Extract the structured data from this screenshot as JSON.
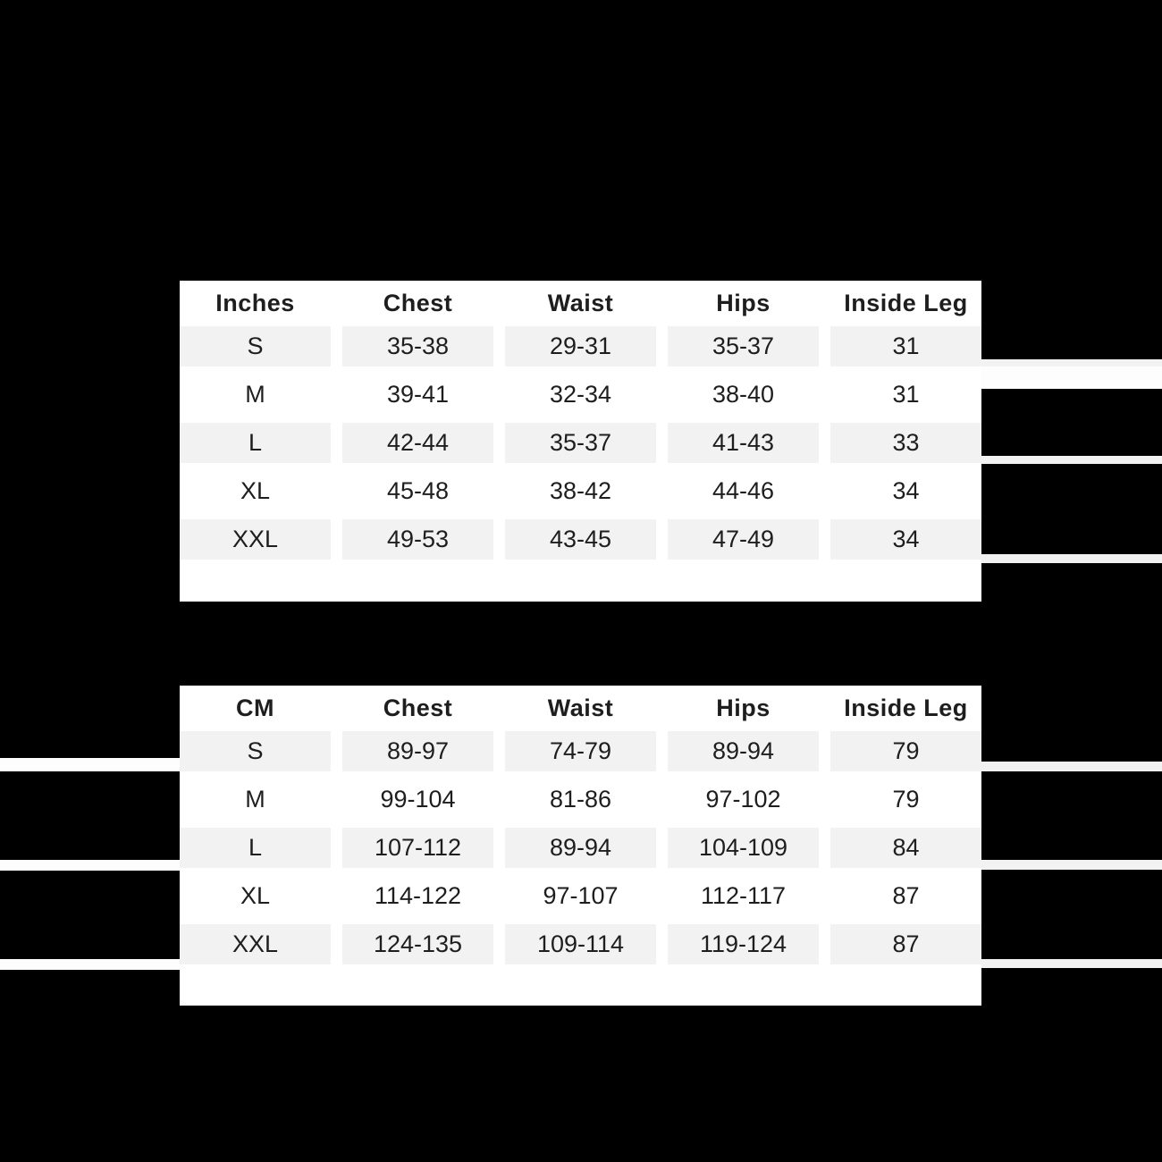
{
  "colors": {
    "background": "#000000",
    "card": "#ffffff",
    "row_stripe": "#f2f2f2",
    "text": "#1e1e1e",
    "edge_sliver_white": "#fdfdfd",
    "edge_sliver_gray": "#f2f2f2"
  },
  "chart_data": [
    {
      "type": "table",
      "title": "Size chart in inches",
      "unit_label": "Inches",
      "columns": [
        "Inches",
        "Chest",
        "Waist",
        "Hips",
        "Inside Leg"
      ],
      "rows": [
        [
          "S",
          "35-38",
          "29-31",
          "35-37",
          "31"
        ],
        [
          "M",
          "39-41",
          "32-34",
          "38-40",
          "31"
        ],
        [
          "L",
          "42-44",
          "35-37",
          "41-43",
          "33"
        ],
        [
          "XL",
          "45-48",
          "38-42",
          "44-46",
          "34"
        ],
        [
          "XXL",
          "49-53",
          "43-45",
          "47-49",
          "34"
        ]
      ],
      "layout_hints": {
        "striped_rows": [
          "S",
          "L",
          "XXL"
        ],
        "header_bold": true
      }
    },
    {
      "type": "table",
      "title": "Size chart in centimetres",
      "unit_label": "CM",
      "columns": [
        "CM",
        "Chest",
        "Waist",
        "Hips",
        "Inside Leg"
      ],
      "rows": [
        [
          "S",
          "89-97",
          "74-79",
          "89-94",
          "79"
        ],
        [
          "M",
          "99-104",
          "81-86",
          "97-102",
          "79"
        ],
        [
          "L",
          "107-112",
          "89-94",
          "104-109",
          "84"
        ],
        [
          "XL",
          "114-122",
          "97-107",
          "112-117",
          "87"
        ],
        [
          "XXL",
          "124-135",
          "109-114",
          "119-124",
          "87"
        ]
      ],
      "layout_hints": {
        "striped_rows": [
          "S",
          "L",
          "XXL"
        ],
        "header_bold": true
      }
    }
  ]
}
